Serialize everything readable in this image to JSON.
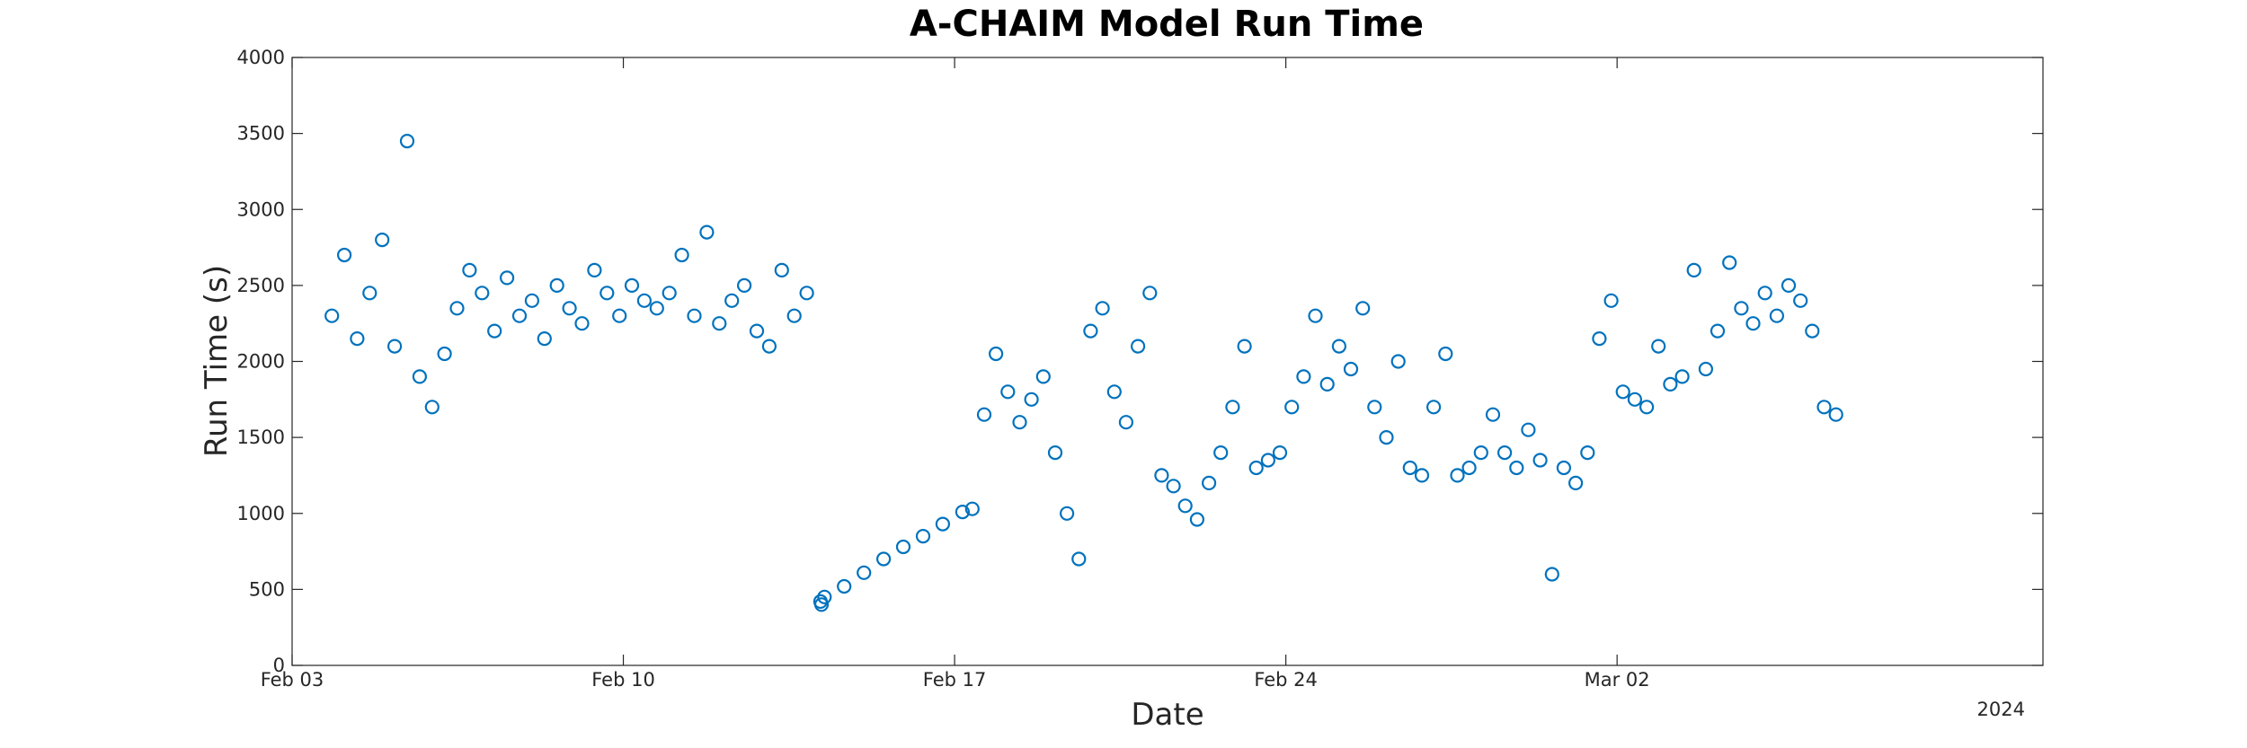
{
  "chart_data": {
    "type": "scatter",
    "title": "A-CHAIM Model Run Time",
    "xlabel": "Date",
    "ylabel": "Run Time (s)",
    "x_axis_type": "date",
    "xlim": [
      "2024-02-03",
      "2024-03-11"
    ],
    "ylim": [
      0,
      4000
    ],
    "x_ticks": [
      {
        "date": "2024-02-03",
        "label": "Feb 03"
      },
      {
        "date": "2024-02-10",
        "label": "Feb 10"
      },
      {
        "date": "2024-02-17",
        "label": "Feb 17"
      },
      {
        "date": "2024-02-24",
        "label": "Feb 24"
      },
      {
        "date": "2024-03-02",
        "label": "Mar 02"
      }
    ],
    "y_ticks": [
      0,
      500,
      1000,
      1500,
      2000,
      2500,
      3000,
      3500,
      4000
    ],
    "year_label": "2024",
    "grid": false,
    "marker": "open-circle",
    "color": "#0072BD",
    "series": [
      {
        "x": [
          "2024-02-03 20:10",
          "2024-02-04 02:30",
          "2024-02-04 09:00",
          "2024-02-04 15:20",
          "2024-02-04 21:40",
          "2024-02-05 04:00",
          "2024-02-05 10:20",
          "2024-02-05 16:40",
          "2024-02-05 23:00",
          "2024-02-06 05:20",
          "2024-02-06 11:40",
          "2024-02-06 18:00",
          "2024-02-07 00:20",
          "2024-02-07 06:40",
          "2024-02-07 13:00",
          "2024-02-07 19:20",
          "2024-02-08 01:40",
          "2024-02-08 08:00",
          "2024-02-08 14:20",
          "2024-02-08 20:40",
          "2024-02-09 03:00",
          "2024-02-09 09:20",
          "2024-02-09 15:40",
          "2024-02-09 22:00",
          "2024-02-10 04:20",
          "2024-02-10 10:40",
          "2024-02-10 17:00",
          "2024-02-10 23:20",
          "2024-02-11 05:40",
          "2024-02-11 12:00",
          "2024-02-11 18:20",
          "2024-02-12 00:40",
          "2024-02-12 07:00",
          "2024-02-12 13:20",
          "2024-02-12 19:40",
          "2024-02-13 02:00",
          "2024-02-13 08:20",
          "2024-02-13 14:40",
          "2024-02-13 21:00",
          "2024-02-14 04:00",
          "2024-02-14 04:30",
          "2024-02-14 06:00",
          "2024-02-14 16:00",
          "2024-02-15 02:00",
          "2024-02-15 12:00",
          "2024-02-15 22:00",
          "2024-02-16 08:00",
          "2024-02-16 18:00",
          "2024-02-17 04:00",
          "2024-02-17 09:00",
          "2024-02-17 15:00",
          "2024-02-17 21:00",
          "2024-02-18 03:00",
          "2024-02-18 09:00",
          "2024-02-18 15:00",
          "2024-02-18 21:00",
          "2024-02-19 03:00",
          "2024-02-19 09:00",
          "2024-02-19 15:00",
          "2024-02-19 21:00",
          "2024-02-20 03:00",
          "2024-02-20 09:00",
          "2024-02-20 15:00",
          "2024-02-20 21:00",
          "2024-02-21 03:00",
          "2024-02-21 09:00",
          "2024-02-21 15:00",
          "2024-02-21 21:00",
          "2024-02-22 03:00",
          "2024-02-22 09:00",
          "2024-02-22 15:00",
          "2024-02-22 21:00",
          "2024-02-23 03:00",
          "2024-02-23 09:00",
          "2024-02-23 15:00",
          "2024-02-23 21:00",
          "2024-02-24 03:00",
          "2024-02-24 09:00",
          "2024-02-24 15:00",
          "2024-02-24 21:00",
          "2024-02-25 03:00",
          "2024-02-25 09:00",
          "2024-02-25 15:00",
          "2024-02-25 21:00",
          "2024-02-26 03:00",
          "2024-02-26 09:00",
          "2024-02-26 15:00",
          "2024-02-26 21:00",
          "2024-02-27 03:00",
          "2024-02-27 09:00",
          "2024-02-27 15:00",
          "2024-02-27 21:00",
          "2024-02-28 03:00",
          "2024-02-28 09:00",
          "2024-02-28 15:00",
          "2024-02-28 21:00",
          "2024-02-29 03:00",
          "2024-02-29 09:00",
          "2024-02-29 15:00",
          "2024-02-29 21:00",
          "2024-03-01 03:00",
          "2024-03-01 09:00",
          "2024-03-01 15:00",
          "2024-03-01 21:00",
          "2024-03-02 03:00",
          "2024-03-02 09:00",
          "2024-03-02 15:00",
          "2024-03-02 21:00",
          "2024-03-03 03:00",
          "2024-03-03 09:00",
          "2024-03-03 15:00",
          "2024-03-03 21:00",
          "2024-03-04 03:00",
          "2024-03-04 09:00",
          "2024-03-04 15:00",
          "2024-03-04 21:00",
          "2024-03-05 03:00",
          "2024-03-05 09:00",
          "2024-03-05 15:00",
          "2024-03-05 21:00",
          "2024-03-06 03:00",
          "2024-03-06 09:00",
          "2024-03-06 15:00"
        ],
        "y": [
          2300,
          2700,
          2150,
          2450,
          2800,
          2100,
          3450,
          1900,
          1700,
          2050,
          2350,
          2600,
          2450,
          2200,
          2550,
          2300,
          2400,
          2150,
          2500,
          2350,
          2250,
          2600,
          2450,
          2300,
          2500,
          2400,
          2350,
          2450,
          2700,
          2300,
          2850,
          2250,
          2400,
          2500,
          2200,
          2100,
          2600,
          2300,
          2450,
          420,
          400,
          450,
          520,
          610,
          700,
          780,
          850,
          930,
          1010,
          1030,
          1650,
          2050,
          1800,
          1600,
          1750,
          1900,
          1400,
          1000,
          700,
          2200,
          2350,
          1800,
          1600,
          2100,
          2450,
          1250,
          1180,
          1050,
          960,
          1200,
          1400,
          1700,
          2100,
          1300,
          1350,
          1400,
          1700,
          1900,
          2300,
          1850,
          2100,
          1950,
          2350,
          1700,
          1500,
          2000,
          1300,
          1250,
          1700,
          2050,
          1250,
          1300,
          1400,
          1650,
          1400,
          1300,
          1550,
          1350,
          600,
          1300,
          1200,
          1400,
          2150,
          2400,
          1800,
          1750,
          1700,
          2100,
          1850,
          1900,
          2600,
          1950,
          2200,
          2650,
          2350,
          2250,
          2450,
          2300,
          2500,
          2400,
          2200,
          1700,
          1650
        ]
      }
    ]
  }
}
